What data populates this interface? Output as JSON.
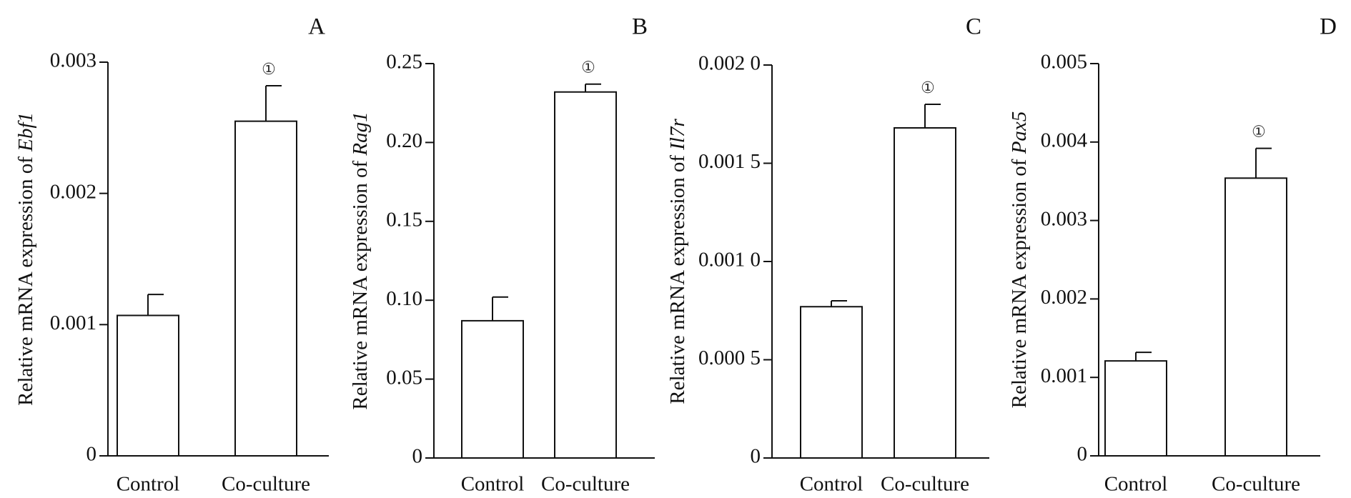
{
  "chart_data": [
    {
      "type": "bar",
      "panel": "A",
      "categories": [
        "Control",
        "Co-culture"
      ],
      "values": [
        0.00107,
        0.00255
      ],
      "errors": [
        0.00016,
        0.00027
      ],
      "significance": [
        "",
        "①"
      ],
      "ylabel_prefix": "Relative mRNA expression of ",
      "gene": "Ebf1",
      "ylim": [
        0,
        0.003
      ],
      "yticks": [
        0,
        0.001,
        0.002,
        0.003
      ],
      "ytick_labels": [
        "0",
        "0.001",
        "0.002",
        "0.003"
      ]
    },
    {
      "type": "bar",
      "panel": "B",
      "categories": [
        "Control",
        "Co-culture"
      ],
      "values": [
        0.087,
        0.232
      ],
      "errors": [
        0.015,
        0.005
      ],
      "significance": [
        "",
        "①"
      ],
      "ylabel_prefix": "Relative mRNA expression of ",
      "gene": "Rag1",
      "ylim": [
        0,
        0.25
      ],
      "yticks": [
        0,
        0.05,
        0.1,
        0.15,
        0.2,
        0.25
      ],
      "ytick_labels": [
        "0",
        "0.05",
        "0.10",
        "0.15",
        "0.20",
        "0.25"
      ]
    },
    {
      "type": "bar",
      "panel": "C",
      "categories": [
        "Control",
        "Co-culture"
      ],
      "values": [
        0.00077,
        0.00168
      ],
      "errors": [
        3e-05,
        0.00012
      ],
      "significance": [
        "",
        "①"
      ],
      "ylabel_prefix": "Relative mRNA expression of ",
      "gene": "Il7r",
      "ylim": [
        0,
        0.002
      ],
      "yticks": [
        0,
        0.0005,
        0.001,
        0.0015,
        0.002
      ],
      "ytick_labels": [
        "0",
        "0.000 5",
        "0.001 0",
        "0.001 5",
        "0.002 0"
      ]
    },
    {
      "type": "bar",
      "panel": "D",
      "categories": [
        "Control",
        "Co-culture"
      ],
      "values": [
        0.00121,
        0.00354
      ],
      "errors": [
        0.00011,
        0.00038
      ],
      "significance": [
        "",
        "①"
      ],
      "ylabel_prefix": "Relative mRNA expression of ",
      "gene": "Pax5",
      "ylim": [
        0,
        0.005
      ],
      "yticks": [
        0,
        0.001,
        0.002,
        0.003,
        0.004,
        0.005
      ],
      "ytick_labels": [
        "0",
        "0.001",
        "0.002",
        "0.003",
        "0.004",
        "0.005"
      ]
    }
  ]
}
